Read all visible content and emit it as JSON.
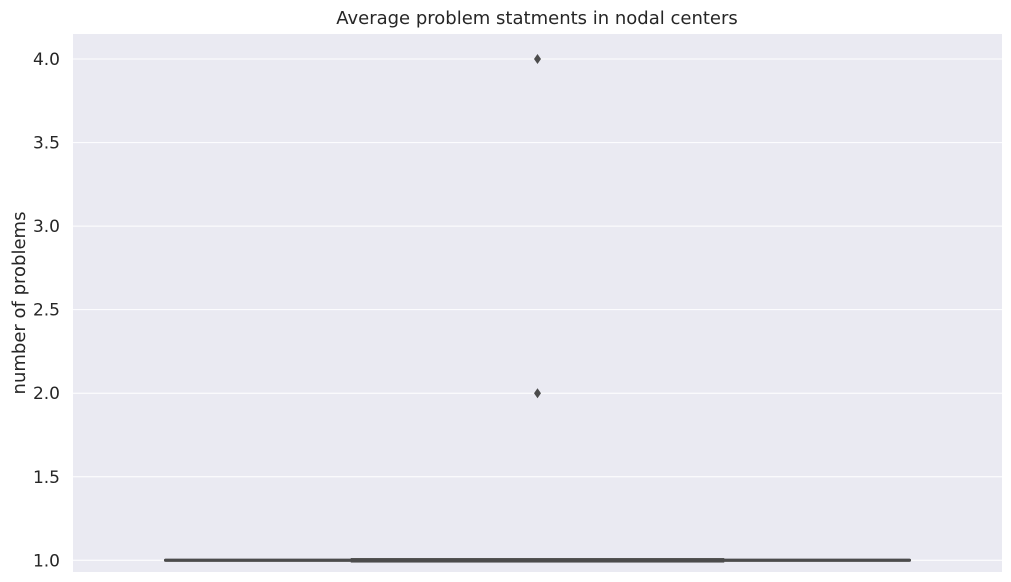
{
  "chart_data": {
    "type": "box",
    "title": "Average problem statments in nodal centers",
    "xlabel": "",
    "ylabel": "number of problems",
    "ylim": [
      0.93,
      4.15
    ],
    "yticks": [
      1.0,
      1.5,
      2.0,
      2.5,
      3.0,
      3.5,
      4.0
    ],
    "ytick_labels": [
      "1.0",
      "1.5",
      "2.0",
      "2.5",
      "3.0",
      "3.5",
      "4.0"
    ],
    "grid": true,
    "box": {
      "min": 1.0,
      "q1": 1.0,
      "median": 1.0,
      "q3": 1.0,
      "max": 1.0,
      "outliers": [
        2.0,
        4.0
      ]
    },
    "colors": {
      "background": "#eaeaf2",
      "grid": "#ffffff",
      "box": "#4c4c4c"
    }
  }
}
